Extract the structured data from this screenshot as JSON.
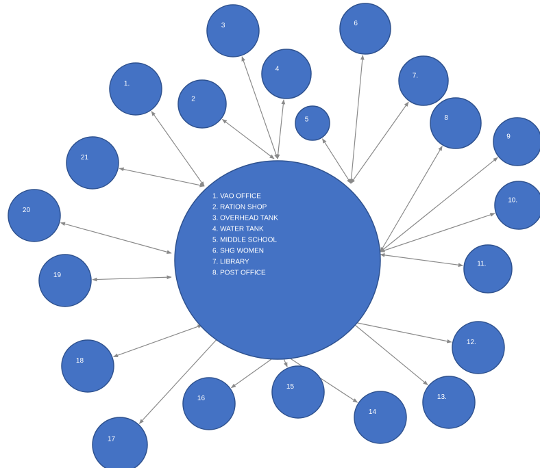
{
  "center": {
    "items": [
      "1. VAO OFFICE",
      "2. RATION SHOP",
      "3. OVERHEAD TANK",
      "4. WATER TANK",
      "5. MIDDLE SCHOOL",
      "6. SHG WOMEN",
      "7. LIBRARY",
      "8. POST OFFICE"
    ]
  },
  "nodes": [
    {
      "label": "1."
    },
    {
      "label": "2"
    },
    {
      "label": "3"
    },
    {
      "label": "4"
    },
    {
      "label": "5"
    },
    {
      "label": "6"
    },
    {
      "label": "7."
    },
    {
      "label": "8"
    },
    {
      "label": "9"
    },
    {
      "label": "10."
    },
    {
      "label": "11."
    },
    {
      "label": "12."
    },
    {
      "label": "13."
    },
    {
      "label": "14"
    },
    {
      "label": "15"
    },
    {
      "label": "16"
    },
    {
      "label": "17"
    },
    {
      "label": "18"
    },
    {
      "label": "19"
    },
    {
      "label": "20"
    },
    {
      "label": "21"
    }
  ]
}
